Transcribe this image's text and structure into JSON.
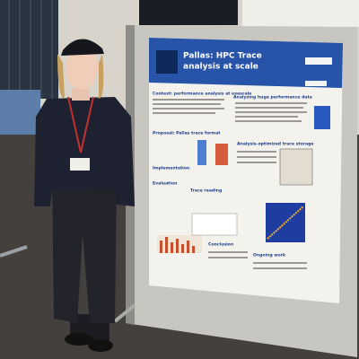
{
  "poster": {
    "title_line1": "Pallas: HPC Trace",
    "title_line2": "analysis at scale",
    "sections": [
      "Context: performance analysis at exascale",
      "Analyzing huge performance data",
      "Proposal: Pallas trace format",
      "Analysis-optimized trace storage",
      "Implementation",
      "Evaluation",
      "Trace reading",
      "Conclusion",
      "Ongoing work"
    ]
  }
}
